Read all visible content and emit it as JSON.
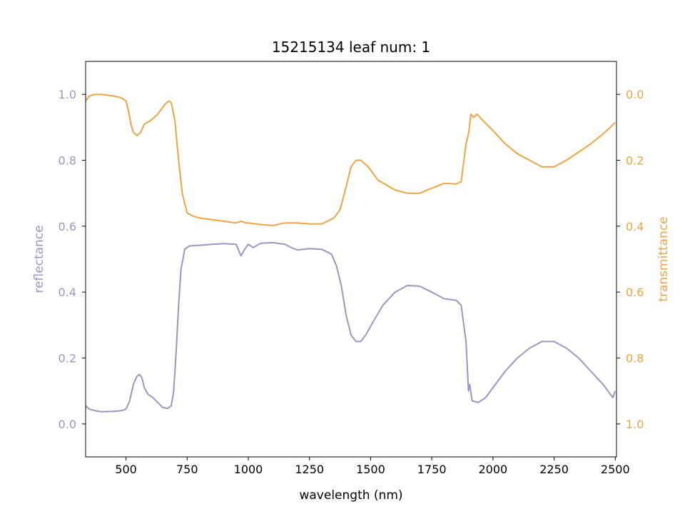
{
  "chart_data": {
    "type": "line",
    "title": "15215134 leaf num: 1",
    "xlabel": "wavelength (nm)",
    "ylabel_left": "reflectance",
    "ylabel_right": "transmittance",
    "xlim": [
      335,
      2505
    ],
    "ylim_left": [
      -0.1,
      1.1
    ],
    "ylim_right": [
      1.1,
      -0.1
    ],
    "right_axis_inverted": true,
    "grid": false,
    "x_ticks": [
      500,
      750,
      1000,
      1250,
      1500,
      1750,
      2000,
      2250,
      2500
    ],
    "y_ticks_left": [
      0.0,
      0.2,
      0.4,
      0.6,
      0.8,
      1.0
    ],
    "y_ticks_right": [
      0.0,
      0.2,
      0.4,
      0.6,
      0.8,
      1.0
    ],
    "colors": {
      "reflectance": "#9c95c5",
      "transmittance": "#eda444",
      "axis": "#000000"
    },
    "series": [
      {
        "name": "reflectance",
        "axis": "left",
        "points": [
          [
            335,
            0.055
          ],
          [
            350,
            0.045
          ],
          [
            375,
            0.04
          ],
          [
            400,
            0.037
          ],
          [
            450,
            0.038
          ],
          [
            480,
            0.04
          ],
          [
            500,
            0.045
          ],
          [
            515,
            0.07
          ],
          [
            530,
            0.12
          ],
          [
            545,
            0.145
          ],
          [
            555,
            0.15
          ],
          [
            565,
            0.14
          ],
          [
            575,
            0.11
          ],
          [
            590,
            0.09
          ],
          [
            610,
            0.08
          ],
          [
            630,
            0.065
          ],
          [
            650,
            0.05
          ],
          [
            670,
            0.047
          ],
          [
            685,
            0.055
          ],
          [
            695,
            0.1
          ],
          [
            705,
            0.22
          ],
          [
            715,
            0.36
          ],
          [
            725,
            0.47
          ],
          [
            740,
            0.53
          ],
          [
            760,
            0.54
          ],
          [
            800,
            0.542
          ],
          [
            850,
            0.545
          ],
          [
            900,
            0.547
          ],
          [
            950,
            0.545
          ],
          [
            970,
            0.51
          ],
          [
            985,
            0.53
          ],
          [
            1000,
            0.545
          ],
          [
            1020,
            0.535
          ],
          [
            1050,
            0.548
          ],
          [
            1100,
            0.55
          ],
          [
            1150,
            0.545
          ],
          [
            1175,
            0.535
          ],
          [
            1200,
            0.528
          ],
          [
            1250,
            0.532
          ],
          [
            1300,
            0.53
          ],
          [
            1340,
            0.515
          ],
          [
            1360,
            0.48
          ],
          [
            1380,
            0.42
          ],
          [
            1400,
            0.33
          ],
          [
            1420,
            0.27
          ],
          [
            1440,
            0.25
          ],
          [
            1460,
            0.25
          ],
          [
            1480,
            0.27
          ],
          [
            1510,
            0.31
          ],
          [
            1550,
            0.36
          ],
          [
            1600,
            0.4
          ],
          [
            1650,
            0.42
          ],
          [
            1700,
            0.418
          ],
          [
            1750,
            0.4
          ],
          [
            1800,
            0.38
          ],
          [
            1850,
            0.375
          ],
          [
            1870,
            0.36
          ],
          [
            1890,
            0.25
          ],
          [
            1900,
            0.1
          ],
          [
            1905,
            0.12
          ],
          [
            1915,
            0.07
          ],
          [
            1940,
            0.065
          ],
          [
            1970,
            0.08
          ],
          [
            2000,
            0.11
          ],
          [
            2050,
            0.16
          ],
          [
            2100,
            0.2
          ],
          [
            2150,
            0.23
          ],
          [
            2200,
            0.25
          ],
          [
            2250,
            0.25
          ],
          [
            2300,
            0.23
          ],
          [
            2350,
            0.2
          ],
          [
            2400,
            0.16
          ],
          [
            2450,
            0.12
          ],
          [
            2470,
            0.1
          ],
          [
            2490,
            0.08
          ],
          [
            2500,
            0.1
          ]
        ]
      },
      {
        "name": "transmittance",
        "axis": "right",
        "points": [
          [
            335,
            0.02
          ],
          [
            350,
            0.005
          ],
          [
            375,
            0.0
          ],
          [
            400,
            0.0
          ],
          [
            450,
            0.005
          ],
          [
            480,
            0.01
          ],
          [
            500,
            0.02
          ],
          [
            510,
            0.05
          ],
          [
            520,
            0.09
          ],
          [
            530,
            0.115
          ],
          [
            545,
            0.125
          ],
          [
            560,
            0.115
          ],
          [
            575,
            0.09
          ],
          [
            600,
            0.08
          ],
          [
            630,
            0.06
          ],
          [
            660,
            0.03
          ],
          [
            675,
            0.02
          ],
          [
            685,
            0.025
          ],
          [
            700,
            0.08
          ],
          [
            715,
            0.2
          ],
          [
            730,
            0.3
          ],
          [
            750,
            0.36
          ],
          [
            775,
            0.37
          ],
          [
            800,
            0.375
          ],
          [
            850,
            0.38
          ],
          [
            900,
            0.385
          ],
          [
            950,
            0.39
          ],
          [
            970,
            0.385
          ],
          [
            990,
            0.39
          ],
          [
            1000,
            0.39
          ],
          [
            1050,
            0.395
          ],
          [
            1100,
            0.398
          ],
          [
            1150,
            0.39
          ],
          [
            1200,
            0.39
          ],
          [
            1250,
            0.393
          ],
          [
            1300,
            0.393
          ],
          [
            1350,
            0.375
          ],
          [
            1375,
            0.35
          ],
          [
            1400,
            0.28
          ],
          [
            1420,
            0.22
          ],
          [
            1440,
            0.2
          ],
          [
            1460,
            0.2
          ],
          [
            1490,
            0.22
          ],
          [
            1530,
            0.26
          ],
          [
            1600,
            0.29
          ],
          [
            1650,
            0.3
          ],
          [
            1700,
            0.3
          ],
          [
            1750,
            0.285
          ],
          [
            1800,
            0.27
          ],
          [
            1850,
            0.272
          ],
          [
            1870,
            0.265
          ],
          [
            1890,
            0.15
          ],
          [
            1900,
            0.12
          ],
          [
            1910,
            0.06
          ],
          [
            1920,
            0.07
          ],
          [
            1935,
            0.06
          ],
          [
            1960,
            0.08
          ],
          [
            2000,
            0.11
          ],
          [
            2050,
            0.15
          ],
          [
            2100,
            0.18
          ],
          [
            2150,
            0.2
          ],
          [
            2200,
            0.22
          ],
          [
            2250,
            0.22
          ],
          [
            2300,
            0.2
          ],
          [
            2350,
            0.175
          ],
          [
            2400,
            0.15
          ],
          [
            2450,
            0.12
          ],
          [
            2480,
            0.1
          ],
          [
            2500,
            0.085
          ]
        ]
      }
    ]
  }
}
